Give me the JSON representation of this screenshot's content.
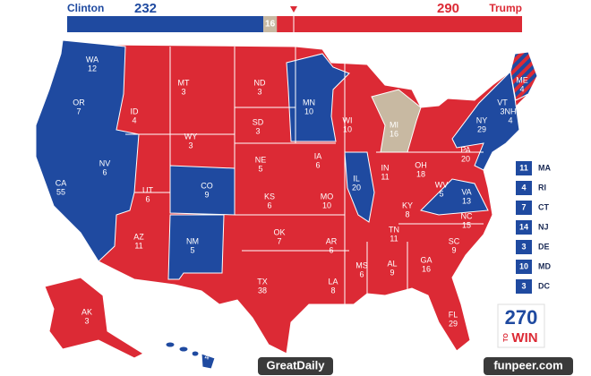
{
  "header": {
    "clinton": {
      "name": "Clinton",
      "votes": 232,
      "color": "#1f4aa0"
    },
    "undecided": {
      "votes": 16,
      "color": "#c8b9a2"
    },
    "trump": {
      "name": "Trump",
      "votes": 290,
      "color": "#dc2a35"
    }
  },
  "states": [
    {
      "abbr": "WA",
      "votes": 12
    },
    {
      "abbr": "OR",
      "votes": 7
    },
    {
      "abbr": "CA",
      "votes": 55
    },
    {
      "abbr": "NV",
      "votes": 6
    },
    {
      "abbr": "ID",
      "votes": 4
    },
    {
      "abbr": "MT",
      "votes": 3
    },
    {
      "abbr": "WY",
      "votes": 3
    },
    {
      "abbr": "UT",
      "votes": 6
    },
    {
      "abbr": "AZ",
      "votes": 11
    },
    {
      "abbr": "CO",
      "votes": 9
    },
    {
      "abbr": "NM",
      "votes": 5
    },
    {
      "abbr": "ND",
      "votes": 3
    },
    {
      "abbr": "SD",
      "votes": 3
    },
    {
      "abbr": "NE",
      "votes": 5
    },
    {
      "abbr": "KS",
      "votes": 6
    },
    {
      "abbr": "OK",
      "votes": 7
    },
    {
      "abbr": "TX",
      "votes": 38
    },
    {
      "abbr": "MN",
      "votes": 10
    },
    {
      "abbr": "IA",
      "votes": 6
    },
    {
      "abbr": "MO",
      "votes": 10
    },
    {
      "abbr": "AR",
      "votes": 6
    },
    {
      "abbr": "LA",
      "votes": 8
    },
    {
      "abbr": "WI",
      "votes": 10
    },
    {
      "abbr": "IL",
      "votes": 20
    },
    {
      "abbr": "MI",
      "votes": 16
    },
    {
      "abbr": "IN",
      "votes": 11
    },
    {
      "abbr": "OH",
      "votes": 18
    },
    {
      "abbr": "KY",
      "votes": 8
    },
    {
      "abbr": "TN",
      "votes": 11
    },
    {
      "abbr": "MS",
      "votes": 6
    },
    {
      "abbr": "AL",
      "votes": 9
    },
    {
      "abbr": "GA",
      "votes": 16
    },
    {
      "abbr": "FL",
      "votes": 29
    },
    {
      "abbr": "SC",
      "votes": 9
    },
    {
      "abbr": "NC",
      "votes": 15
    },
    {
      "abbr": "VA",
      "votes": 13
    },
    {
      "abbr": "WV",
      "votes": 5
    },
    {
      "abbr": "PA",
      "votes": 20
    },
    {
      "abbr": "NY",
      "votes": 29
    },
    {
      "abbr": "VT",
      "votes": 3
    },
    {
      "abbr": "NH",
      "votes": 4
    },
    {
      "abbr": "ME",
      "votes": 4
    },
    {
      "abbr": "AK",
      "votes": 3
    },
    {
      "abbr": "HI",
      "votes": 4
    }
  ],
  "small_states": [
    {
      "abbr": "MA",
      "votes": 11
    },
    {
      "abbr": "RI",
      "votes": 4
    },
    {
      "abbr": "CT",
      "votes": 7
    },
    {
      "abbr": "NJ",
      "votes": 14
    },
    {
      "abbr": "DE",
      "votes": 3
    },
    {
      "abbr": "MD",
      "votes": 10
    },
    {
      "abbr": "DC",
      "votes": 3
    }
  ],
  "logo": {
    "number": "270",
    "to": "TO",
    "win": "WIN"
  },
  "watermarks": {
    "left": "GreatDaily",
    "right": "funpeer.com"
  }
}
